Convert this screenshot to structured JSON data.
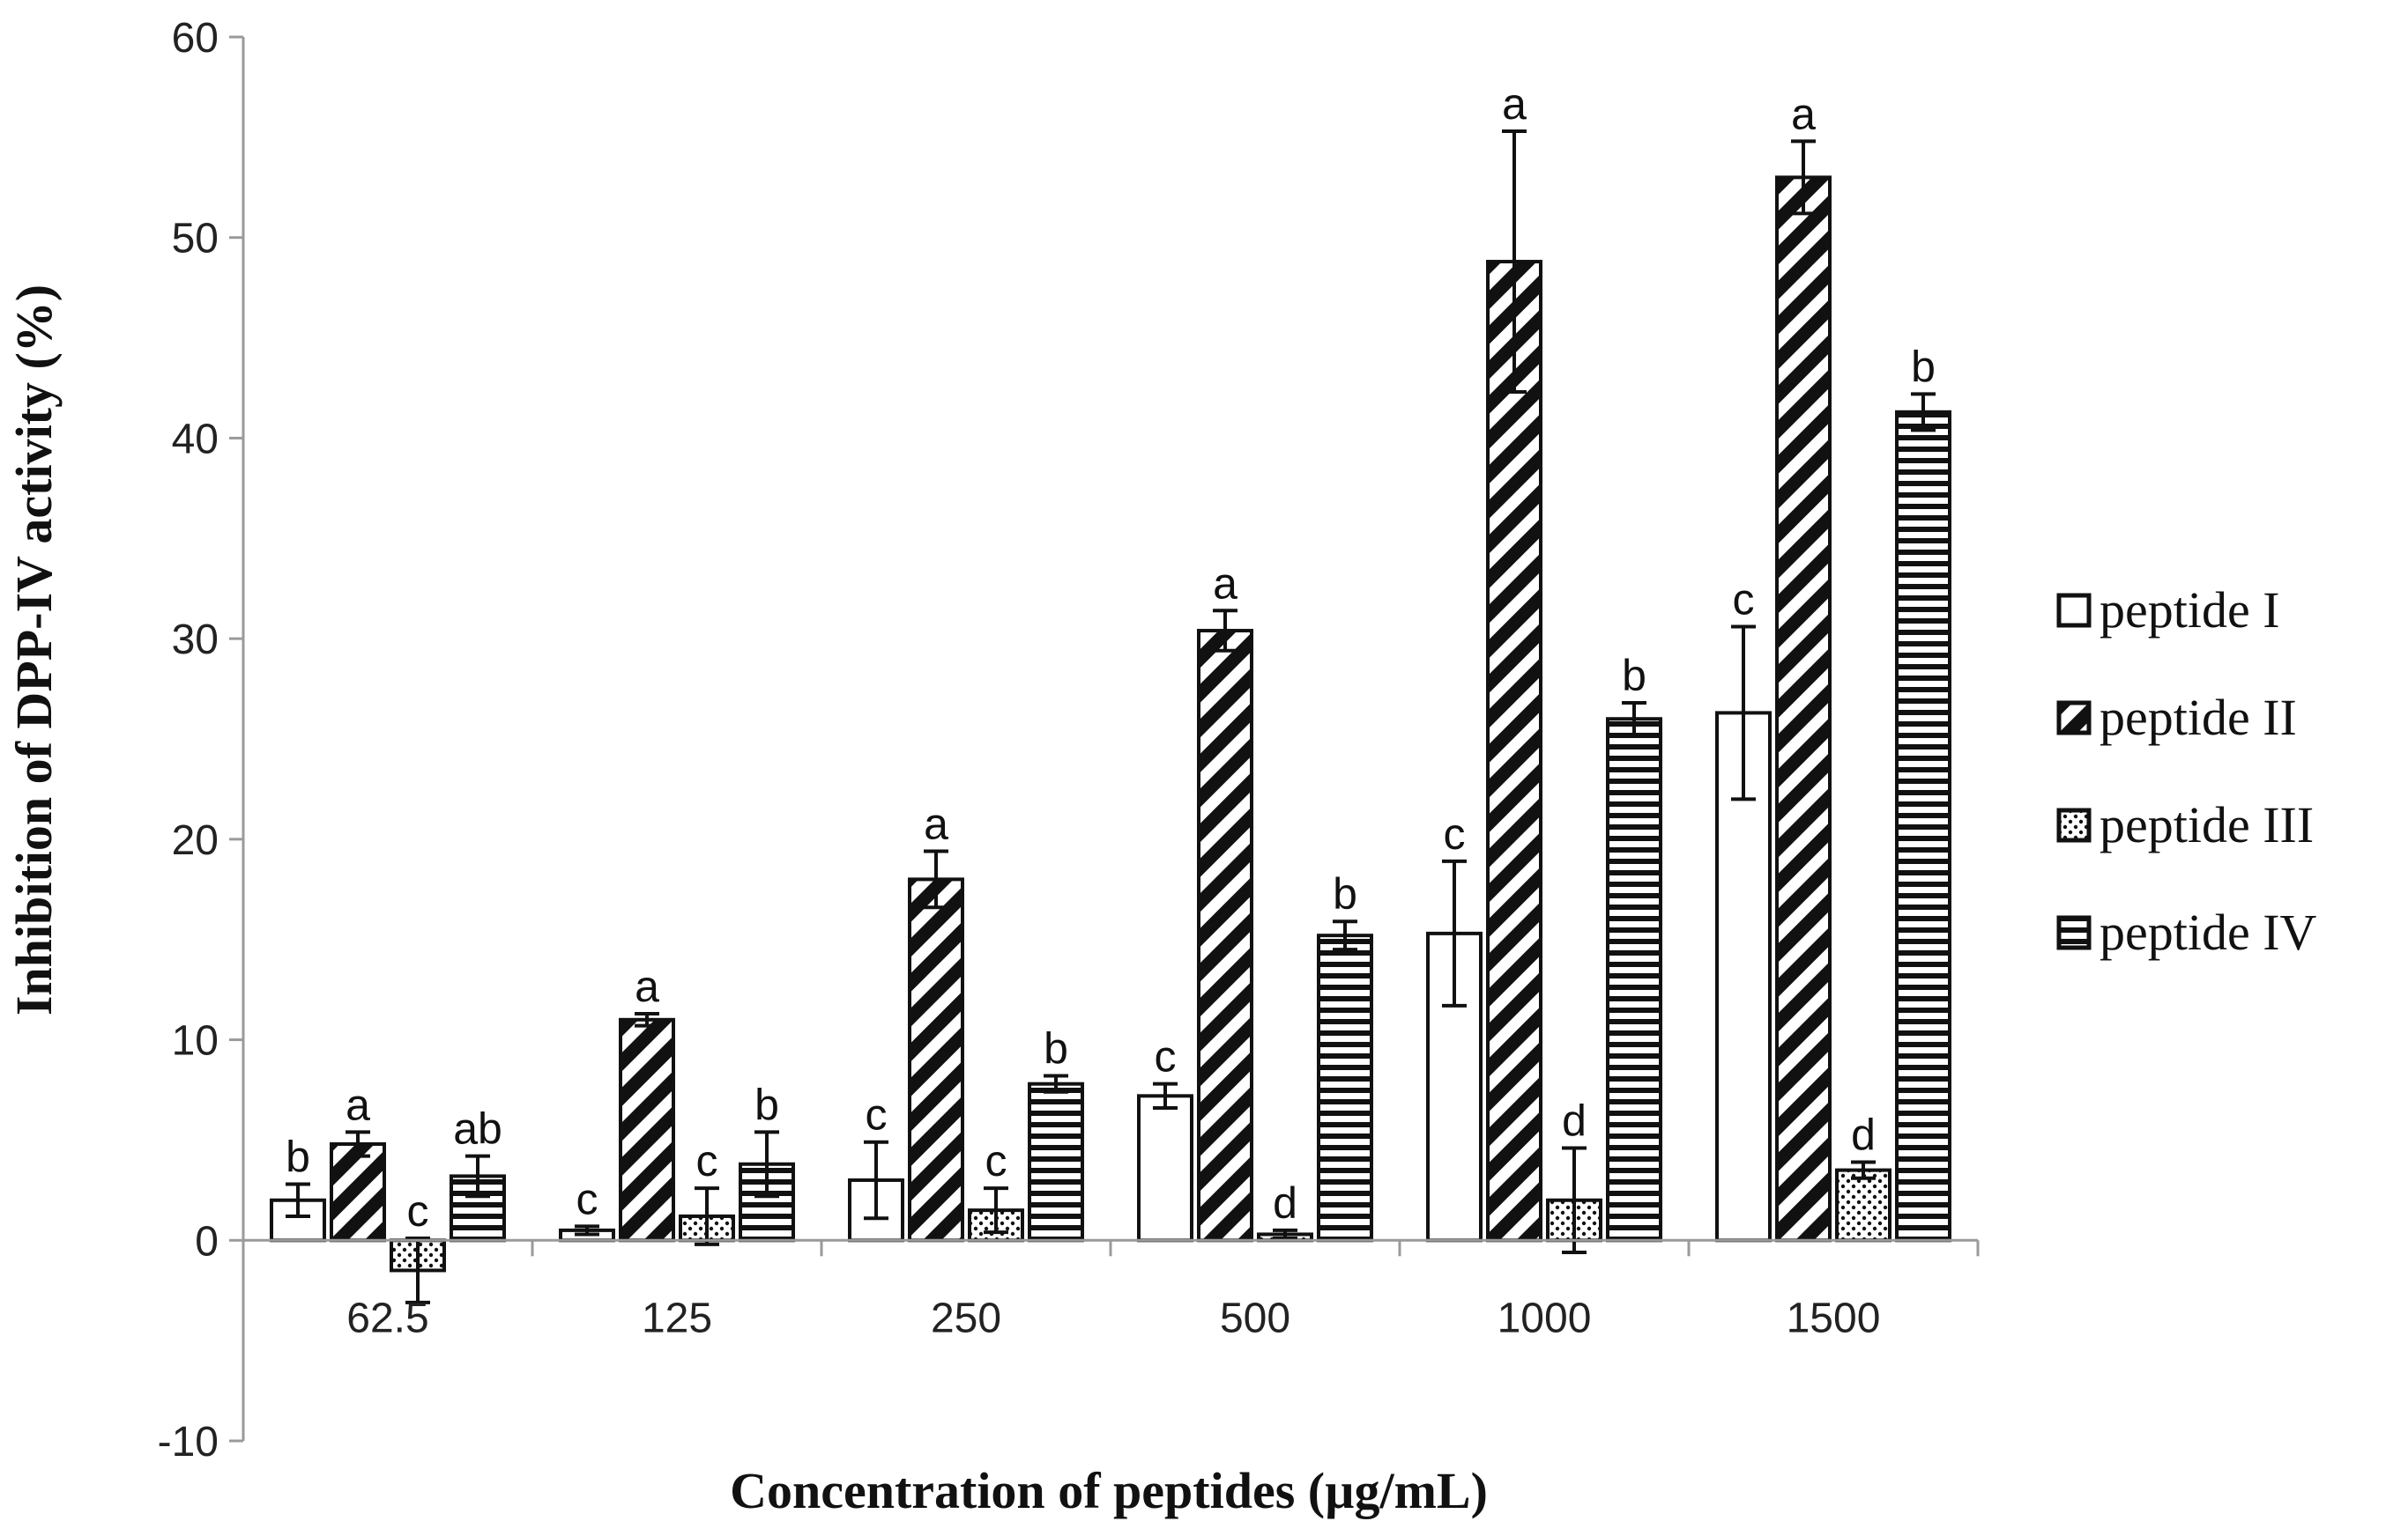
{
  "chart_data": {
    "type": "bar",
    "title": "",
    "xlabel": "Concentration of peptides (µg/mL)",
    "ylabel": "Inhibition of DPP-IV activity (%)",
    "ylim": [
      -10,
      60
    ],
    "yticks": [
      -10,
      0,
      10,
      20,
      30,
      40,
      50,
      60
    ],
    "categories": [
      "62.5",
      "125",
      "250",
      "500",
      "1000",
      "1500"
    ],
    "legend_position": "right",
    "series": [
      {
        "name": "peptide I",
        "pattern": "empty",
        "values": [
          2.0,
          0.5,
          3.0,
          7.2,
          15.3,
          26.3
        ],
        "errors": [
          0.8,
          0.2,
          1.9,
          0.6,
          3.6,
          4.3
        ],
        "letters": [
          "b",
          "c",
          "c",
          "c",
          "c",
          "c"
        ]
      },
      {
        "name": "peptide II",
        "pattern": "diagonal",
        "values": [
          4.8,
          11.0,
          18.0,
          30.4,
          48.8,
          53.0
        ],
        "errors": [
          0.6,
          0.3,
          1.4,
          1.0,
          6.5,
          1.8
        ],
        "letters": [
          "a",
          "a",
          "a",
          "a",
          "a",
          "a"
        ]
      },
      {
        "name": "peptide III",
        "pattern": "dotted",
        "values": [
          -1.5,
          1.2,
          1.5,
          0.3,
          2.0,
          3.5
        ],
        "errors": [
          1.6,
          1.4,
          1.1,
          0.2,
          2.6,
          0.4
        ],
        "letters": [
          "c",
          "c",
          "c",
          "d",
          "d",
          "d"
        ]
      },
      {
        "name": "peptide IV",
        "pattern": "horizontal",
        "values": [
          3.2,
          3.8,
          7.8,
          15.2,
          26.0,
          41.3
        ],
        "errors": [
          1.0,
          1.6,
          0.4,
          0.7,
          0.8,
          0.9
        ],
        "letters": [
          "ab",
          "b",
          "b",
          "b",
          "b",
          "b"
        ]
      }
    ]
  }
}
